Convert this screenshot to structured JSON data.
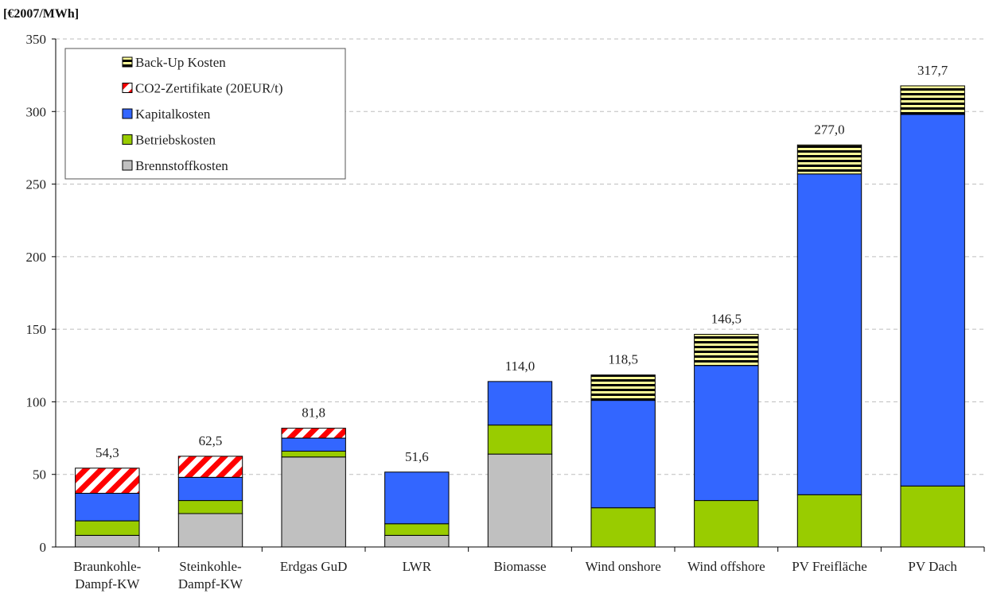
{
  "chart_data": {
    "type": "bar",
    "stacked": true,
    "ylabel": "[€2007/MWh]",
    "ylim": [
      0,
      350
    ],
    "yticks": [
      0,
      50,
      100,
      150,
      200,
      250,
      300,
      350
    ],
    "grid": "horizontal-dashed",
    "legend_position": "top-left",
    "categories": [
      [
        "Braunkohle-",
        "Dampf-KW"
      ],
      [
        "Steinkohle-",
        "Dampf-KW"
      ],
      [
        "Erdgas GuD"
      ],
      [
        "LWR"
      ],
      [
        "Biomasse"
      ],
      [
        "Wind onshore"
      ],
      [
        "Wind offshore"
      ],
      [
        "PV Freifläche"
      ],
      [
        "PV Dach"
      ]
    ],
    "totals": [
      "54,3",
      "62,5",
      "81,8",
      "51,6",
      "114,0",
      "118,5",
      "146,5",
      "277,0",
      "317,7"
    ],
    "series": [
      {
        "name": "Brennstoffkosten",
        "color": "#c0c0c0",
        "pattern": "solid",
        "values": [
          8,
          23,
          62,
          8,
          64,
          0,
          0,
          0,
          0
        ]
      },
      {
        "name": "Betriebskosten",
        "color": "#99cc00",
        "pattern": "solid",
        "values": [
          10,
          9,
          4,
          8,
          20,
          27,
          32,
          36,
          42
        ]
      },
      {
        "name": "Kapitalkosten",
        "color": "#3366ff",
        "pattern": "solid",
        "values": [
          19,
          16,
          9,
          35.6,
          30,
          74,
          93,
          221,
          256
        ]
      },
      {
        "name": "CO2-Zertifikate (20EUR/t)",
        "color": "#ff0000",
        "pattern": "diagonal-stripes",
        "values": [
          17.3,
          14.5,
          6.8,
          0,
          0,
          0,
          0,
          0,
          0
        ]
      },
      {
        "name": "Back-Up Kosten",
        "color": "#ffff99",
        "pattern": "horizontal-stripes",
        "values": [
          0,
          0,
          0,
          0,
          0,
          17.5,
          21.5,
          20,
          19.7
        ]
      }
    ],
    "legend_order": [
      "Back-Up Kosten",
      "CO2-Zertifikate (20EUR/t)",
      "Kapitalkosten",
      "Betriebskosten",
      "Brennstoffkosten"
    ]
  }
}
